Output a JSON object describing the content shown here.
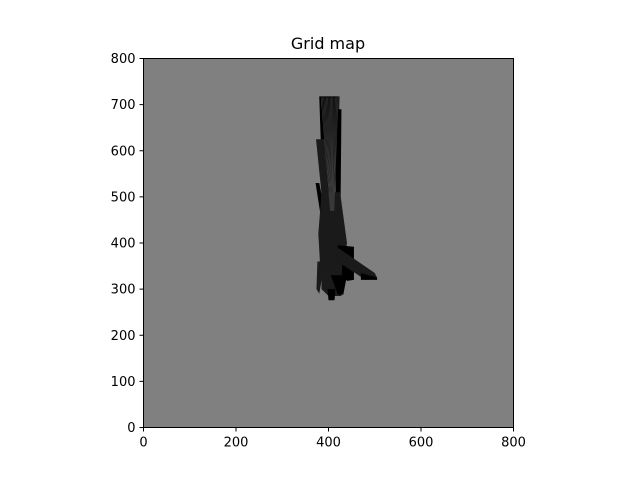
{
  "chart_data": {
    "type": "heatmap",
    "title": "Grid map",
    "xlabel": "",
    "ylabel": "",
    "xlim": [
      0,
      800
    ],
    "ylim": [
      0,
      800
    ],
    "x_ticks": [
      0,
      200,
      400,
      600,
      800
    ],
    "y_ticks": [
      0,
      100,
      200,
      300,
      400,
      500,
      600,
      700,
      800
    ],
    "grid": false,
    "colors": {
      "unknown": "#808080",
      "free": "#000000",
      "ray": "#1a1a1a"
    },
    "free_regions": [
      {
        "name": "north-beam",
        "points": [
          [
            380,
            718
          ],
          [
            420,
            718
          ],
          [
            418,
            600
          ],
          [
            410,
            470
          ],
          [
            392,
            470
          ],
          [
            384,
            600
          ]
        ]
      },
      {
        "name": "north-beam-right",
        "points": [
          [
            420,
            718
          ],
          [
            424,
            718
          ],
          [
            420,
            590
          ],
          [
            416,
            590
          ]
        ]
      },
      {
        "name": "mid-beam-right",
        "points": [
          [
            415,
            690
          ],
          [
            428,
            690
          ],
          [
            426,
            470
          ],
          [
            415,
            470
          ]
        ]
      },
      {
        "name": "left-wedge",
        "points": [
          [
            373,
            625
          ],
          [
            392,
            625
          ],
          [
            406,
            410
          ],
          [
            395,
            408
          ]
        ]
      },
      {
        "name": "left-spike",
        "points": [
          [
            372,
            530
          ],
          [
            380,
            530
          ],
          [
            405,
            405
          ],
          [
            392,
            402
          ]
        ]
      },
      {
        "name": "center-core",
        "points": [
          [
            385,
            510
          ],
          [
            425,
            510
          ],
          [
            440,
            400
          ],
          [
            430,
            340
          ],
          [
            400,
            320
          ],
          [
            382,
            350
          ],
          [
            378,
            420
          ]
        ]
      },
      {
        "name": "right-block",
        "points": [
          [
            420,
            395
          ],
          [
            455,
            392
          ],
          [
            455,
            320
          ],
          [
            440,
            318
          ],
          [
            420,
            340
          ]
        ]
      },
      {
        "name": "east-ray",
        "points": [
          [
            420,
            390
          ],
          [
            500,
            335
          ],
          [
            505,
            325
          ],
          [
            480,
            320
          ],
          [
            420,
            360
          ]
        ]
      },
      {
        "name": "east-tip",
        "points": [
          [
            470,
            335
          ],
          [
            505,
            325
          ],
          [
            505,
            320
          ],
          [
            470,
            320
          ]
        ]
      },
      {
        "name": "south-block",
        "points": [
          [
            385,
            360
          ],
          [
            430,
            360
          ],
          [
            428,
            285
          ],
          [
            400,
            285
          ],
          [
            385,
            300
          ]
        ]
      },
      {
        "name": "south-tip",
        "points": [
          [
            398,
            300
          ],
          [
            415,
            300
          ],
          [
            413,
            276
          ],
          [
            400,
            276
          ]
        ]
      },
      {
        "name": "south-left-spike",
        "points": [
          [
            376,
            360
          ],
          [
            392,
            360
          ],
          [
            380,
            290
          ],
          [
            374,
            300
          ]
        ]
      },
      {
        "name": "south-right-spike",
        "points": [
          [
            405,
            330
          ],
          [
            440,
            330
          ],
          [
            432,
            288
          ],
          [
            420,
            288
          ]
        ]
      }
    ]
  }
}
